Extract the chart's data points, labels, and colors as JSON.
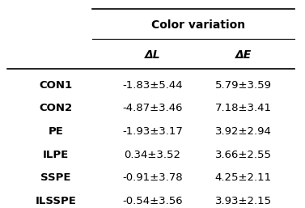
{
  "title": "Color variation",
  "col_headers": [
    "ΔL",
    "ΔE"
  ],
  "row_labels": [
    "CON1",
    "CON2",
    "PE",
    "ILPE",
    "SSPE",
    "ILSSPE"
  ],
  "delta_l": [
    "-1.83±5.44",
    "-4.87±3.46",
    "-1.93±3.17",
    "0.34±3.52",
    "-0.91±3.78",
    "-0.54±3.56"
  ],
  "delta_e": [
    "5.79±3.59",
    "7.18±3.41",
    "3.92±2.94",
    "3.66±2.55",
    "4.25±2.11",
    "3.93±2.15"
  ],
  "background_color": "#ffffff",
  "text_color": "#000000",
  "header_fontsize": 10,
  "cell_fontsize": 9.5,
  "row_label_fontsize": 9.5
}
